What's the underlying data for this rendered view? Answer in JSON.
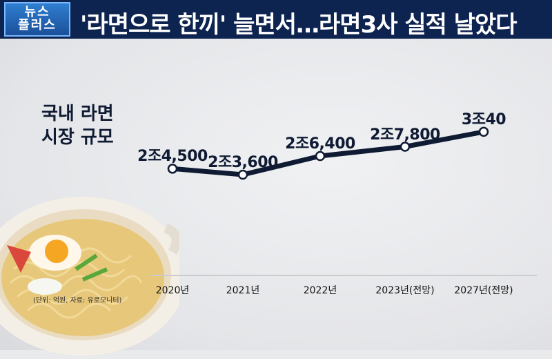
{
  "header": {
    "logo_line1": "뉴스",
    "logo_line2": "플러스",
    "headline": "'라면으로 한끼' 늘면서…라면3사 실적 날았다"
  },
  "chart_title_line1": "국내 라면",
  "chart_title_line2": "시장 규모",
  "note": "(단위: 억원, 자료: 유로모니터)",
  "chart_data": {
    "type": "line",
    "categories": [
      "2020년",
      "2021년",
      "2022년",
      "2023년(전망)",
      "2027년(전망)"
    ],
    "values": [
      24500,
      23600,
      26400,
      27800,
      30040
    ],
    "value_labels": [
      "2조4,500",
      "2조3,600",
      "2조6,400",
      "2조7,800",
      "3조40"
    ],
    "unit": "억원",
    "color": "#0f1a33"
  }
}
